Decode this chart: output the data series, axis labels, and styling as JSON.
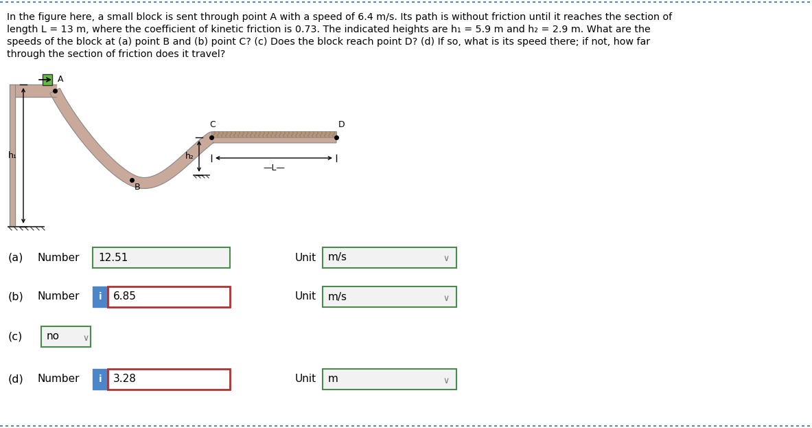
{
  "bg_color": "#ffffff",
  "text_color": "#000000",
  "blue_color": "#4a86c8",
  "track_fill": "#c9a99a",
  "track_edge": "#888888",
  "friction_fill": "#b8957a",
  "green_border": "#4a8a4a",
  "red_border": "#aa3333",
  "answer_a_value": "12.51",
  "answer_b_value": "6.85",
  "answer_c_value": "no",
  "answer_d_value": "3.28",
  "unit_a": "m/s",
  "unit_b": "m/s",
  "unit_d": "m",
  "dashed_border_color": "#5588bb"
}
